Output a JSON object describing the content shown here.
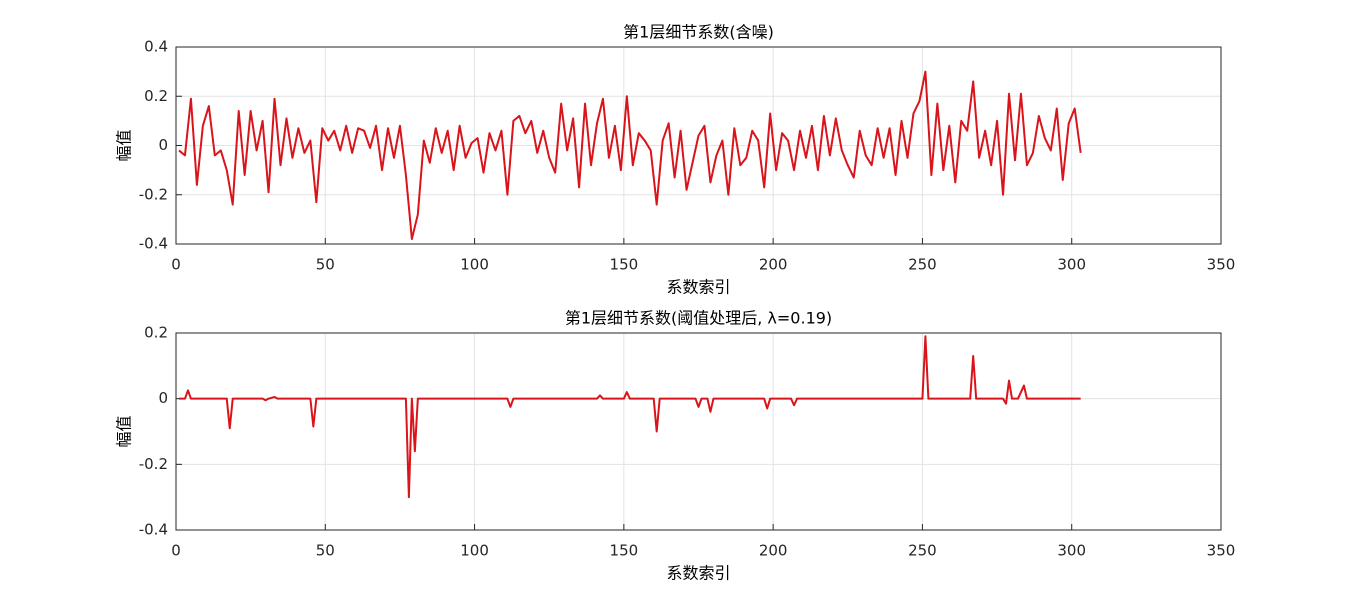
{
  "chart_data": [
    {
      "type": "line",
      "title": "第1层细节系数(含噪)",
      "xlabel": "系数索引",
      "ylabel": "幅值",
      "color": "#d9141b",
      "grid": true,
      "xlim": [
        0,
        350
      ],
      "ylim": [
        -0.4,
        0.4
      ],
      "xticks": [
        0,
        50,
        100,
        150,
        200,
        250,
        300,
        350
      ],
      "yticks": [
        -0.4,
        -0.2,
        0,
        0.2,
        0.4
      ],
      "x": [
        1,
        3,
        5,
        7,
        9,
        11,
        13,
        15,
        17,
        19,
        21,
        23,
        25,
        27,
        29,
        31,
        33,
        35,
        37,
        39,
        41,
        43,
        45,
        47,
        49,
        51,
        53,
        55,
        57,
        59,
        61,
        63,
        65,
        67,
        69,
        71,
        73,
        75,
        77,
        79,
        81,
        83,
        85,
        87,
        89,
        91,
        93,
        95,
        97,
        99,
        101,
        103,
        105,
        107,
        109,
        111,
        113,
        115,
        117,
        119,
        121,
        123,
        125,
        127,
        129,
        131,
        133,
        135,
        137,
        139,
        141,
        143,
        145,
        147,
        149,
        151,
        153,
        155,
        157,
        159,
        161,
        163,
        165,
        167,
        169,
        171,
        173,
        175,
        177,
        179,
        181,
        183,
        185,
        187,
        189,
        191,
        193,
        195,
        197,
        199,
        201,
        203,
        205,
        207,
        209,
        211,
        213,
        215,
        217,
        219,
        221,
        223,
        225,
        227,
        229,
        231,
        233,
        235,
        237,
        239,
        241,
        243,
        245,
        247,
        249,
        251,
        253,
        255,
        257,
        259,
        261,
        263,
        265,
        267,
        269,
        271,
        273,
        275,
        277,
        279,
        281,
        283,
        285,
        287,
        289,
        291,
        293,
        295,
        297,
        299,
        301,
        303
      ],
      "values": [
        -0.02,
        -0.04,
        0.19,
        -0.16,
        0.08,
        0.16,
        -0.04,
        -0.02,
        -0.1,
        -0.24,
        0.14,
        -0.12,
        0.14,
        -0.02,
        0.1,
        -0.19,
        0.19,
        -0.08,
        0.11,
        -0.05,
        0.07,
        -0.03,
        0.02,
        -0.23,
        0.07,
        0.02,
        0.06,
        -0.02,
        0.08,
        -0.03,
        0.07,
        0.06,
        -0.01,
        0.08,
        -0.1,
        0.07,
        -0.05,
        0.08,
        -0.12,
        -0.38,
        -0.28,
        0.02,
        -0.07,
        0.07,
        -0.03,
        0.06,
        -0.1,
        0.08,
        -0.05,
        0.01,
        0.03,
        -0.11,
        0.05,
        -0.02,
        0.06,
        -0.2,
        0.1,
        0.12,
        0.05,
        0.1,
        -0.03,
        0.06,
        -0.05,
        -0.11,
        0.17,
        -0.02,
        0.11,
        -0.17,
        0.17,
        -0.08,
        0.09,
        0.19,
        -0.05,
        0.08,
        -0.1,
        0.2,
        -0.08,
        0.05,
        0.02,
        -0.02,
        -0.24,
        0.02,
        0.09,
        -0.13,
        0.06,
        -0.18,
        -0.07,
        0.04,
        0.08,
        -0.15,
        -0.04,
        0.02,
        -0.2,
        0.07,
        -0.08,
        -0.05,
        0.06,
        0.02,
        -0.17,
        0.13,
        -0.1,
        0.05,
        0.02,
        -0.1,
        0.06,
        -0.05,
        0.08,
        -0.1,
        0.12,
        -0.04,
        0.11,
        -0.02,
        -0.08,
        -0.13,
        0.06,
        -0.04,
        -0.08,
        0.07,
        -0.05,
        0.07,
        -0.12,
        0.1,
        -0.05,
        0.13,
        0.18,
        0.3,
        -0.12,
        0.17,
        -0.1,
        0.08,
        -0.15,
        0.1,
        0.06,
        0.26,
        -0.05,
        0.06,
        -0.08,
        0.1,
        -0.2,
        0.21,
        -0.06,
        0.21,
        -0.08,
        -0.03,
        0.12,
        0.03,
        -0.02,
        0.15,
        -0.14,
        0.09,
        0.15,
        -0.03
      ]
    },
    {
      "type": "line",
      "title": "第1层细节系数(阈值处理后, λ=0.19)",
      "xlabel": "系数索引",
      "ylabel": "幅值",
      "color": "#d9141b",
      "grid": true,
      "xlim": [
        0,
        350
      ],
      "ylim": [
        -0.4,
        0.2
      ],
      "xticks": [
        0,
        50,
        100,
        150,
        200,
        250,
        300,
        350
      ],
      "yticks": [
        -0.4,
        -0.2,
        0,
        0.2
      ],
      "x": [
        1,
        3,
        4,
        5,
        17,
        18,
        19,
        29,
        30,
        31,
        33,
        34,
        45,
        46,
        47,
        77,
        78,
        79,
        80,
        81,
        111,
        112,
        113,
        141,
        142,
        143,
        150,
        151,
        152,
        160,
        161,
        162,
        174,
        175,
        176,
        178,
        179,
        180,
        197,
        198,
        199,
        206,
        207,
        208,
        250,
        251,
        252,
        266,
        267,
        268,
        277,
        278,
        279,
        280,
        282,
        284,
        285,
        303
      ],
      "values": [
        0,
        0,
        0.025,
        0,
        0,
        -0.09,
        0,
        0,
        -0.005,
        0,
        0.005,
        0,
        0,
        -0.085,
        0,
        0,
        -0.3,
        0,
        -0.16,
        0,
        0,
        -0.025,
        0,
        0,
        0.01,
        0,
        0,
        0.02,
        0,
        0,
        -0.1,
        0,
        0,
        -0.025,
        0,
        0,
        -0.04,
        0,
        0,
        -0.03,
        0,
        0,
        -0.02,
        0,
        0,
        0.19,
        0,
        0,
        0.13,
        0,
        0,
        -0.015,
        0.055,
        0,
        0,
        0.04,
        0,
        0
      ]
    }
  ]
}
